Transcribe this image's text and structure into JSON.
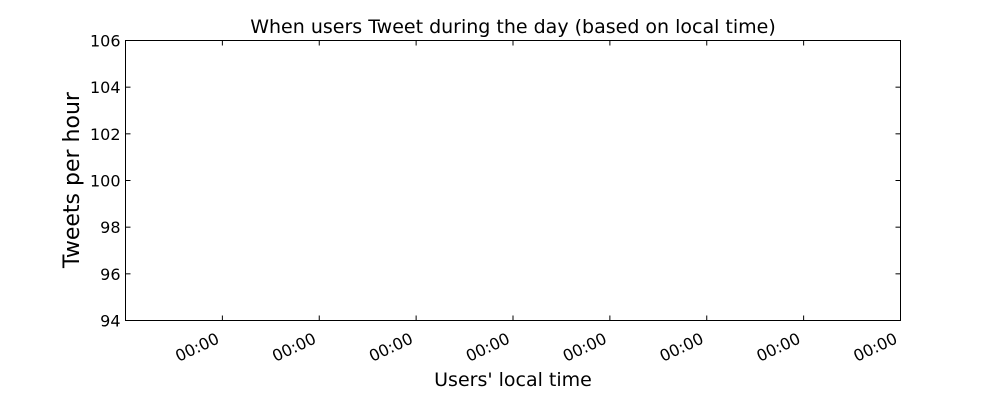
{
  "chart_data": {
    "type": "line",
    "title": "When users Tweet during the day (based on local time)",
    "xlabel": "Users' local time",
    "ylabel": "Tweets per hour",
    "ylim": [
      94,
      106
    ],
    "y_ticks": [
      94,
      96,
      98,
      100,
      102,
      104,
      106
    ],
    "x_tick_labels": [
      "00:00",
      "00:00",
      "00:00",
      "00:00",
      "00:00",
      "00:00",
      "00:00",
      "00:00"
    ],
    "series": [],
    "grid": false,
    "colors": {
      "axis": "#000000",
      "background": "#ffffff"
    }
  }
}
